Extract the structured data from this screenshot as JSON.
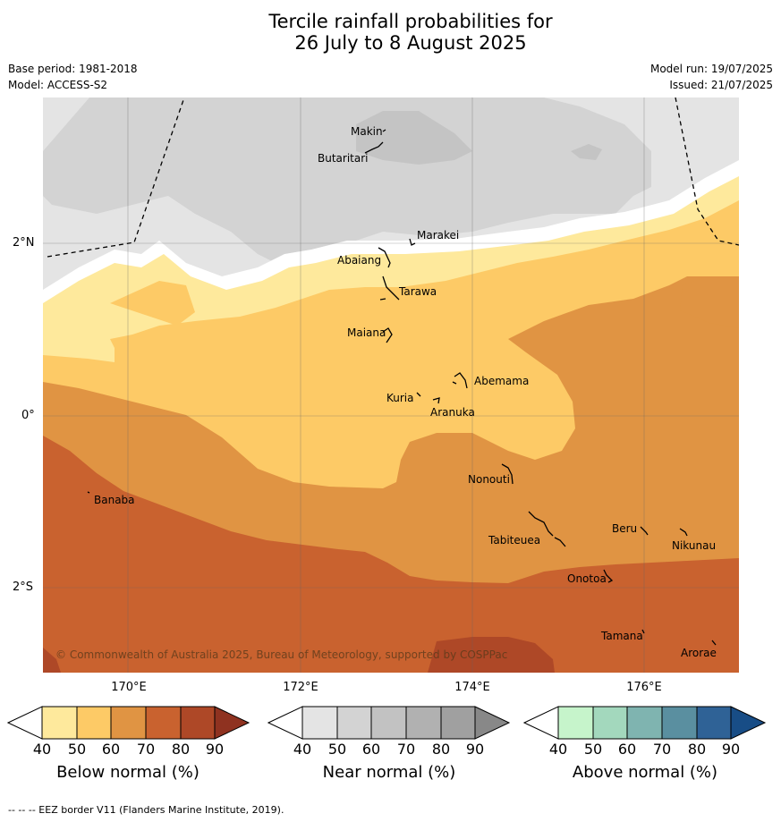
{
  "title_line1": "Tercile rainfall probabilities for",
  "title_line2": "26 July to 8 August 2025",
  "meta": {
    "base_period": "Base period: 1981-2018",
    "model": "Model: ACCESS-S2",
    "model_run": "Model run: 19/07/2025",
    "issued": "Issued: 21/07/2025"
  },
  "axes": {
    "lat_labels": [
      "2°N",
      "0°",
      "2°S"
    ],
    "lon_labels": [
      "170°E",
      "172°E",
      "174°E",
      "176°E"
    ]
  },
  "places": [
    {
      "name": "Makin"
    },
    {
      "name": "Butaritari"
    },
    {
      "name": "Marakei"
    },
    {
      "name": "Abaiang"
    },
    {
      "name": "Tarawa"
    },
    {
      "name": "Maiana"
    },
    {
      "name": "Abemama"
    },
    {
      "name": "Kuria"
    },
    {
      "name": "Aranuka"
    },
    {
      "name": "Banaba"
    },
    {
      "name": "Nonouti"
    },
    {
      "name": "Beru"
    },
    {
      "name": "Tabiteuea"
    },
    {
      "name": "Nikunau"
    },
    {
      "name": "Onotoa"
    },
    {
      "name": "Tamana"
    },
    {
      "name": "Arorae"
    }
  ],
  "copyright": "© Commonwealth of Australia 2025, Bureau of Meteorology, supported by COSPPac",
  "colorbars": [
    {
      "title": "Below normal (%)",
      "ticks": [
        "40",
        "50",
        "60",
        "70",
        "80",
        "90"
      ],
      "colors": [
        "#ffffff",
        "#fee99c",
        "#fdca66",
        "#e09443",
        "#c9622f",
        "#ae4827",
        "#8f3220"
      ]
    },
    {
      "title": "Near normal (%)",
      "ticks": [
        "40",
        "50",
        "60",
        "70",
        "80",
        "90"
      ],
      "colors": [
        "#ffffff",
        "#e4e4e4",
        "#d3d3d3",
        "#c2c2c2",
        "#b1b1b1",
        "#a0a0a0",
        "#888888"
      ]
    },
    {
      "title": "Above normal (%)",
      "ticks": [
        "40",
        "50",
        "60",
        "70",
        "80",
        "90"
      ],
      "colors": [
        "#ffffff",
        "#c6f4cb",
        "#a3d8bd",
        "#7fb4b0",
        "#5a8fa0",
        "#2f6296",
        "#184d86"
      ]
    }
  ],
  "footer": "-- -- -- EEZ border V11 (Flanders Marine Institute, 2019)."
}
